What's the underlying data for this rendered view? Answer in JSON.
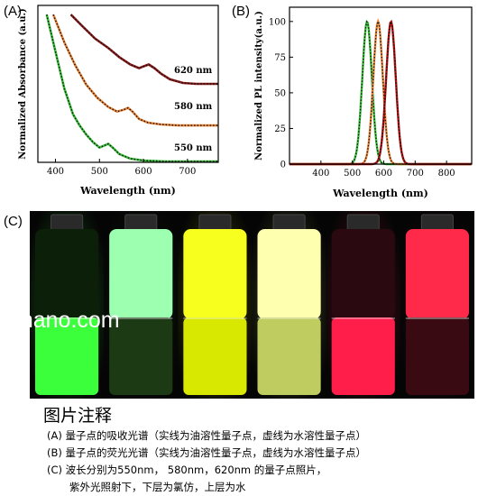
{
  "panels": {
    "a": "(A)",
    "b": "(B)",
    "c": "(C)"
  },
  "chart_data": [
    {
      "type": "line",
      "panel": "(A)",
      "xlabel": "Wavelength (nm)",
      "ylabel": "Normalized Absorbance (a.u.)",
      "xlim": [
        360,
        770
      ],
      "xticks": [
        400,
        500,
        600,
        700
      ],
      "yticks": [],
      "grid": false,
      "legend": "none",
      "annotations": [
        "620 nm",
        "580 nm",
        "550 nm"
      ],
      "series": [
        {
          "color": "#8b1a1a",
          "x": [
            435,
            460,
            490,
            520,
            545,
            570,
            590,
            600,
            612,
            625,
            640,
            660,
            690,
            720,
            750,
            770
          ],
          "y": [
            1.6,
            1.48,
            1.34,
            1.24,
            1.14,
            1.06,
            1.02,
            1.04,
            1.06,
            1.02,
            0.96,
            0.9,
            0.86,
            0.85,
            0.85,
            0.85
          ]
        },
        {
          "color": "#e9863a",
          "x": [
            395,
            420,
            445,
            470,
            495,
            520,
            540,
            555,
            565,
            575,
            590,
            610,
            640,
            680,
            720,
            770
          ],
          "y": [
            1.6,
            1.3,
            1.05,
            0.84,
            0.7,
            0.6,
            0.55,
            0.57,
            0.59,
            0.55,
            0.47,
            0.43,
            0.41,
            0.4,
            0.4,
            0.4
          ]
        },
        {
          "color": "#3bbf3b",
          "x": [
            380,
            400,
            420,
            440,
            455,
            470,
            485,
            500,
            510,
            520,
            530,
            545,
            570,
            600,
            650,
            700,
            770
          ],
          "y": [
            1.6,
            1.2,
            0.8,
            0.52,
            0.4,
            0.3,
            0.22,
            0.16,
            0.18,
            0.2,
            0.16,
            0.09,
            0.04,
            0.02,
            0.01,
            0.01,
            0.01
          ]
        }
      ]
    },
    {
      "type": "line",
      "panel": "(B)",
      "xlabel": "Wavelength (nm)",
      "ylabel": "Normalized PL intensity(a.u.)",
      "xlim": [
        300,
        880
      ],
      "ylim": [
        0,
        110
      ],
      "xticks": [
        400,
        500,
        600,
        700,
        800
      ],
      "yticks": [
        0,
        25,
        50,
        75,
        100
      ],
      "grid": false,
      "legend": "none",
      "series": [
        {
          "color": "#3bbf3b",
          "center": 547,
          "fwhm": 36,
          "peak": 100
        },
        {
          "color": "#e9863a",
          "center": 582,
          "fwhm": 36,
          "peak": 100
        },
        {
          "color": "#b01010",
          "center": 623,
          "fwhm": 36,
          "peak": 100
        }
      ]
    }
  ],
  "photo": {
    "watermark": "mnano.com",
    "vials": [
      {
        "top": "#0c1f08",
        "bottom": "#3cff3c"
      },
      {
        "top": "#9dffb0",
        "bottom": "#1c3a14"
      },
      {
        "top": "#f6ff1e",
        "bottom": "#d9e800"
      },
      {
        "top": "#ffffb0",
        "bottom": "#bfcc60"
      },
      {
        "top": "#2a0a10",
        "bottom": "#ff1e4a"
      },
      {
        "top": "#ff2a4a",
        "bottom": "#3a0a12"
      }
    ]
  },
  "caption": {
    "title": "图片注释",
    "lines": [
      "(A) 量子点的吸收光谱（实线为油溶性量子点，虚线为水溶性量子点）",
      "(B) 量子点的荧光光谱（实线为油溶性量子点，虚线为水溶性量子点）",
      "(C) 波长分别为550nm， 580nm，620nm 的量子点照片，",
      "紫外光照射下，下层为氯仿，上层为水"
    ]
  }
}
